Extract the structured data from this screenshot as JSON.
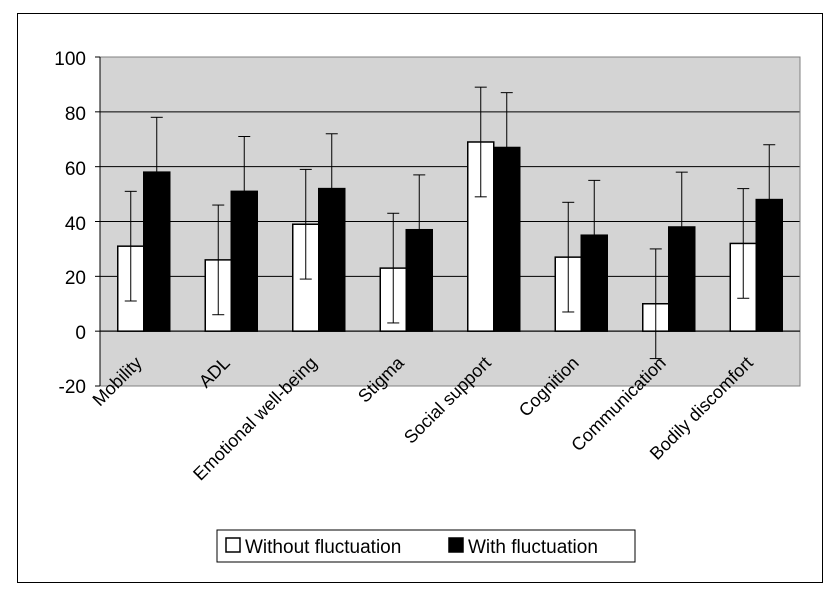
{
  "chart_data": {
    "type": "bar",
    "categories": [
      "Mobility",
      "ADL",
      "Emotional well-being",
      "Stigma",
      "Social support",
      "Cognition",
      "Communication",
      "Bodily discomfort"
    ],
    "series": [
      {
        "name": "Without fluctuation",
        "values": [
          31,
          26,
          39,
          23,
          69,
          27,
          10,
          32
        ],
        "error": [
          20,
          20,
          20,
          20,
          20,
          20,
          20,
          20
        ],
        "color": "#ffffff"
      },
      {
        "name": "With fluctuation",
        "values": [
          58,
          51,
          52,
          37,
          67,
          35,
          38,
          48
        ],
        "error": [
          20,
          20,
          20,
          20,
          20,
          20,
          20,
          20
        ],
        "color": "#000000"
      }
    ],
    "ylim": [
      -20,
      100
    ],
    "yticks": [
      "100",
      "80",
      "60",
      "40",
      "20",
      "0",
      "-20"
    ],
    "grid": true,
    "plot_background": "#d4d4d4",
    "legend_position": "bottom"
  }
}
